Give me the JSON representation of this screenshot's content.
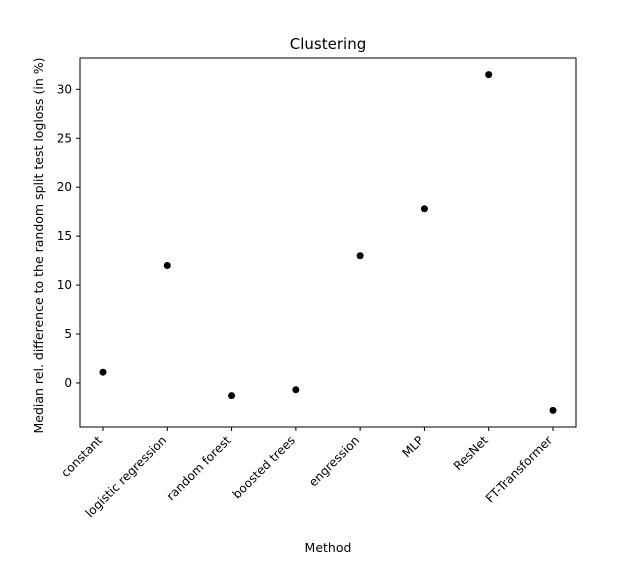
{
  "chart_data": {
    "type": "scatter",
    "title": "Clustering",
    "xlabel": "Method",
    "ylabel": "Median rel. difference to the random split test logloss (in %)",
    "categories": [
      "constant",
      "logistic regression",
      "random forest",
      "boosted trees",
      "engression",
      "MLP",
      "ResNet",
      "FT-Transformer"
    ],
    "values": [
      1.1,
      12.0,
      -1.3,
      -0.7,
      13.0,
      17.8,
      31.5,
      -2.8
    ],
    "yticks": [
      0,
      5,
      10,
      15,
      20,
      25,
      30
    ],
    "ylim": [
      -4.5,
      33.2
    ],
    "grid": false,
    "marker_color": "#000000"
  }
}
